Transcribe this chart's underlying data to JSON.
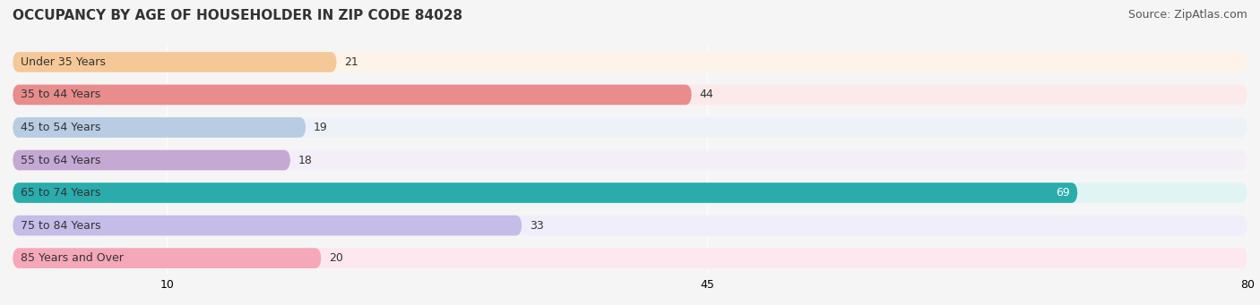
{
  "title": "OCCUPANCY BY AGE OF HOUSEHOLDER IN ZIP CODE 84028",
  "source": "Source: ZipAtlas.com",
  "categories": [
    "Under 35 Years",
    "35 to 44 Years",
    "45 to 54 Years",
    "55 to 64 Years",
    "65 to 74 Years",
    "75 to 84 Years",
    "85 Years and Over"
  ],
  "values": [
    21,
    44,
    19,
    18,
    69,
    33,
    20
  ],
  "bar_colors": [
    "#f5c897",
    "#e88c8c",
    "#b8cce4",
    "#c5a8d4",
    "#2aacac",
    "#c5bce8",
    "#f4a8b8"
  ],
  "bg_colors": [
    "#fdf3e8",
    "#fceaea",
    "#edf2f9",
    "#f4eef9",
    "#e0f4f4",
    "#f0eefb",
    "#fde8ef"
  ],
  "xlim": [
    0,
    80
  ],
  "xticks": [
    10,
    45,
    80
  ],
  "title_fontsize": 11,
  "source_fontsize": 9,
  "label_fontsize": 9,
  "value_fontsize": 9,
  "background_color": "#f5f5f5"
}
